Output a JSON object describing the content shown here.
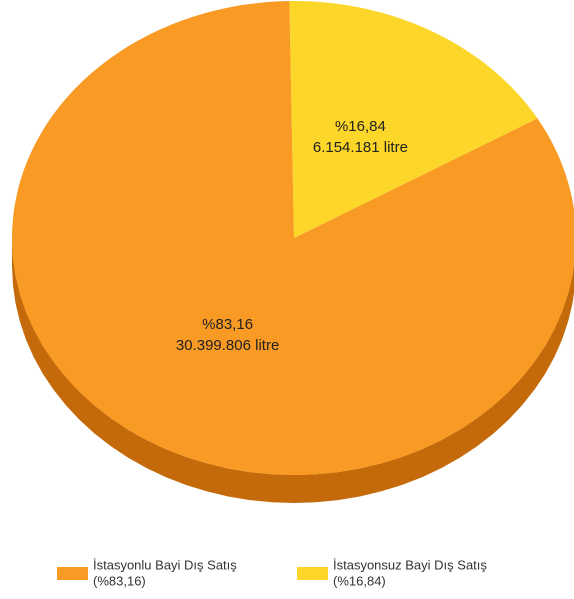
{
  "chart_data": {
    "type": "pie3d",
    "categories": [
      "İstasyonlu Bayi Dış Satış",
      "İstasyonsuz Bayi Dış Satış"
    ],
    "values": [
      83.16,
      16.84
    ],
    "value_labels": [
      "%83,16",
      "%16,84"
    ],
    "amounts": [
      30399806,
      6154181
    ],
    "amount_labels": [
      "30.399.806 litre",
      "6.154.181 litre"
    ],
    "legend_value_labels": [
      "(%83,16)",
      "(%16,84)"
    ],
    "colors": [
      "#f99a24",
      "#fcd628"
    ],
    "side_colors": [
      "#c46a0a",
      "#b39a12"
    ]
  }
}
